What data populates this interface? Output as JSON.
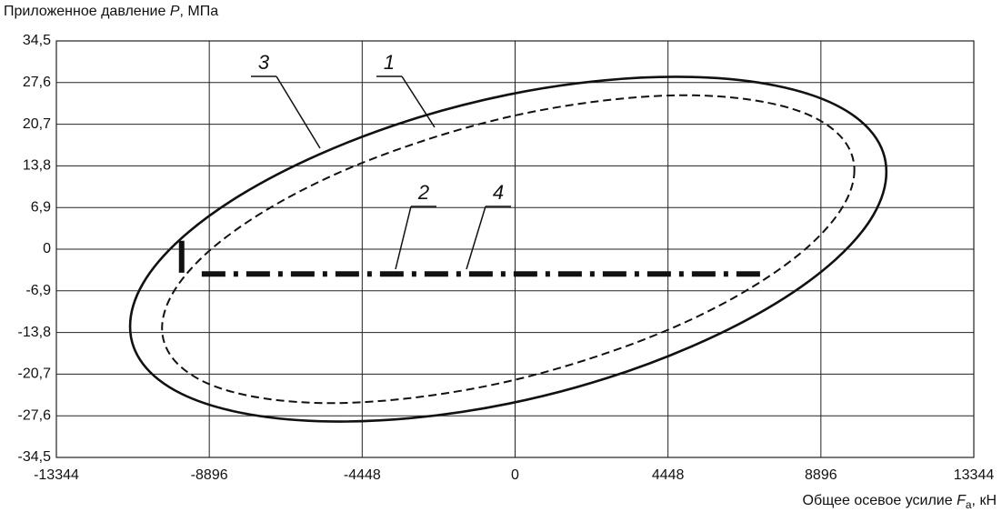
{
  "chart_data": {
    "type": "line",
    "y_label": {
      "before": "Приложенное давление ",
      "symbol": "P",
      "after": ", МПа"
    },
    "x_label": {
      "before": "Общее осевое усилие ",
      "symbol": "F",
      "sub": "a",
      "after": ", кН"
    },
    "xlim": [
      -13344,
      13344
    ],
    "xticks": [
      -13344,
      -8896,
      -4448,
      0,
      4448,
      8896,
      13344
    ],
    "ylim": [
      -34.5,
      34.5
    ],
    "yticks": [
      {
        "value": -34.5,
        "label": "-34,5"
      },
      {
        "value": -27.6,
        "label": "-27,6"
      },
      {
        "value": -20.7,
        "label": "-20,7"
      },
      {
        "value": -13.8,
        "label": "-13,8"
      },
      {
        "value": -6.9,
        "label": "-6,9"
      },
      0,
      {
        "value": 6.9,
        "label": "6,9"
      },
      {
        "value": 13.8,
        "label": "13,8"
      },
      {
        "value": 20.7,
        "label": "20,7"
      },
      {
        "value": 27.6,
        "label": "27,6"
      },
      {
        "value": 34.5,
        "label": "34,5"
      }
    ],
    "grid": true,
    "series": [
      {
        "name": "3",
        "color": "#111111",
        "style": "solid",
        "linewidth": 2.6,
        "x": [
          10800,
          10426,
          9326,
          7577,
          5300,
          2649,
          -200,
          -3049,
          -5700,
          -7977,
          -9726,
          -10826,
          -11200,
          -10826,
          -9726,
          -7977,
          -5700,
          -3049,
          -200,
          2649,
          5300,
          7577,
          9326,
          10426,
          10800
        ],
        "values": [
          12.8,
          5.7,
          -1.7,
          -9.0,
          -15.7,
          -21.4,
          -25.6,
          -28.0,
          -28.5,
          -27.1,
          -23.9,
          -19.0,
          -12.8,
          -5.7,
          1.7,
          9.0,
          15.7,
          21.4,
          25.6,
          28.0,
          28.5,
          27.1,
          23.9,
          19.0,
          12.8
        ]
      },
      {
        "name": "1",
        "color": "#111111",
        "style": "dashed",
        "linewidth": 2,
        "x": [
          9870,
          9528,
          8521,
          6919,
          4835,
          2408,
          -200,
          -2808,
          -5235,
          -7319,
          -8921,
          -9928,
          -10270,
          -9928,
          -8921,
          -7319,
          -5235,
          -2808,
          -200,
          2408,
          4835,
          6919,
          8521,
          9528,
          9870
        ],
        "values": [
          13.1,
          7.0,
          0.4,
          -6.2,
          -12.4,
          -17.7,
          -21.9,
          -24.5,
          -25.5,
          -24.7,
          -22.3,
          -18.3,
          -13.1,
          -7.0,
          -0.4,
          6.2,
          12.4,
          17.7,
          21.9,
          24.5,
          25.5,
          24.7,
          22.3,
          18.3,
          13.1
        ]
      },
      {
        "name": "2",
        "color": "#111111",
        "style": "solid",
        "linewidth": 6,
        "x": [
          -9700,
          -9700
        ],
        "values": [
          1.4,
          -3.9
        ]
      },
      {
        "name": "4",
        "color": "#111111",
        "style": "dashdot",
        "linewidth": 6,
        "x": [
          -9115,
          7213
        ],
        "values": [
          -4.1,
          -4.1
        ]
      }
    ]
  }
}
